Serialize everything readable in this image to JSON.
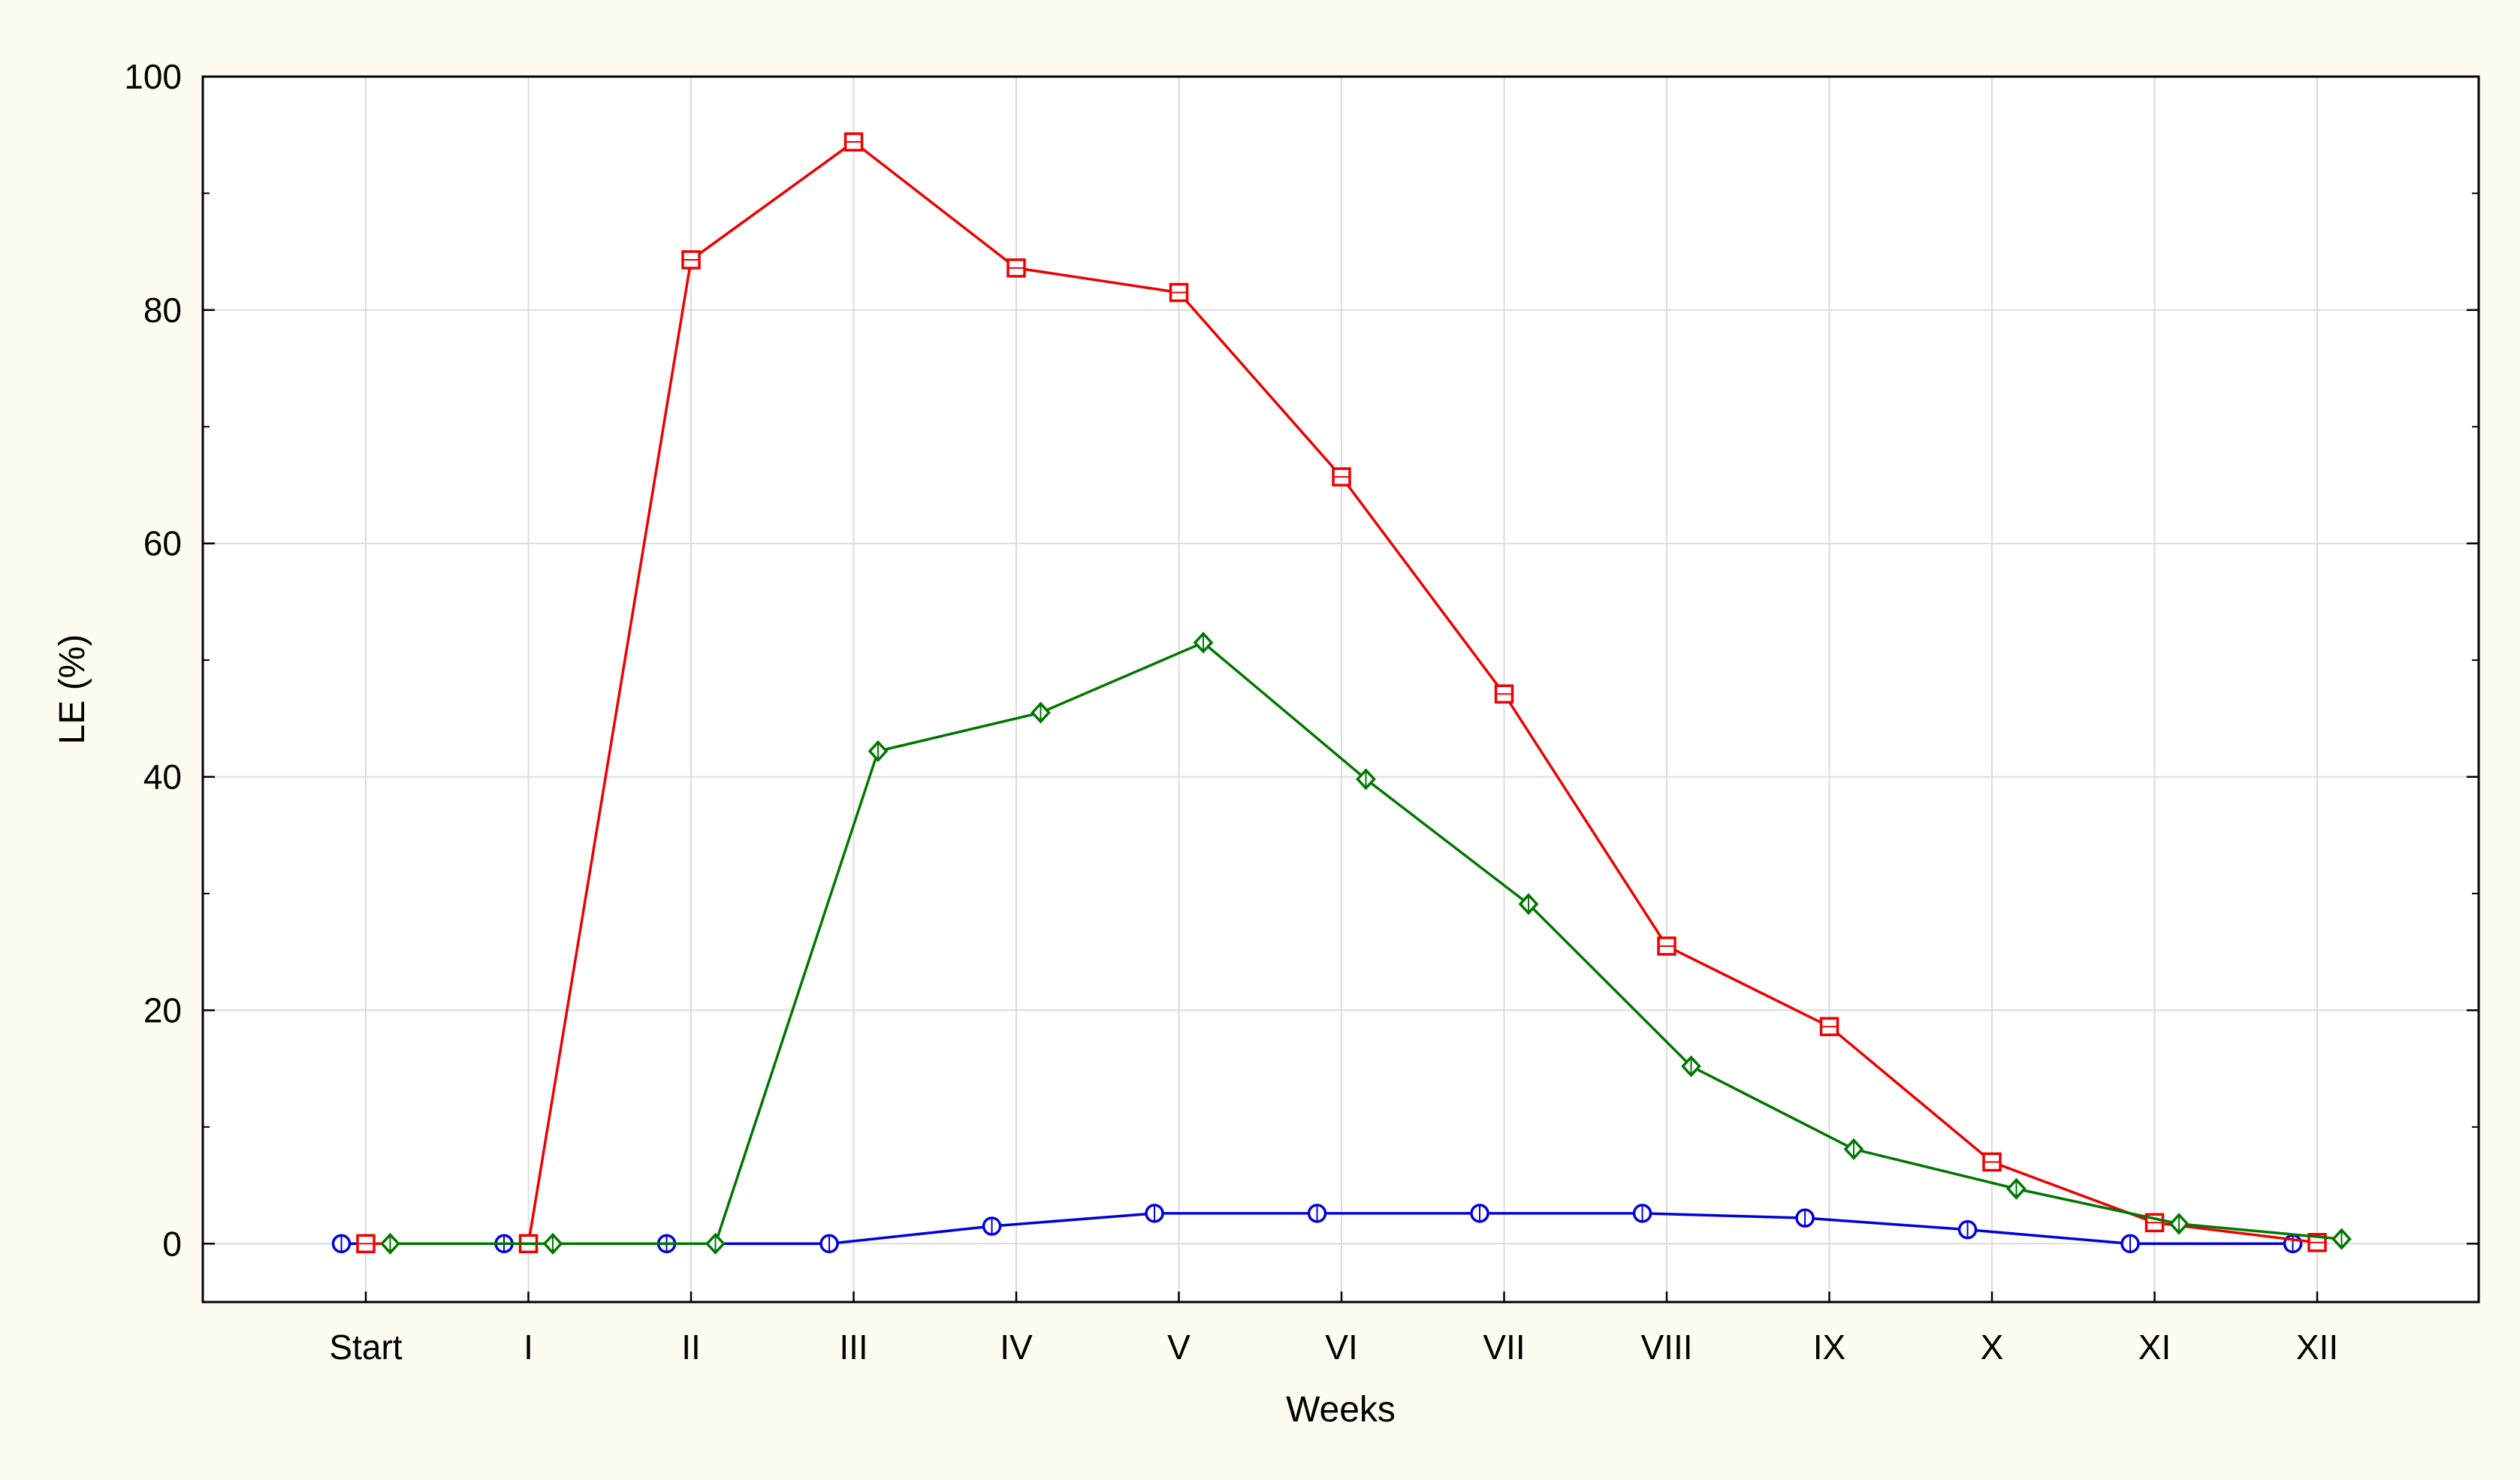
{
  "chart_data": {
    "type": "line",
    "xlabel": "Weeks",
    "ylabel": "LE (%)",
    "categories": [
      "Start",
      "I",
      "II",
      "III",
      "IV",
      "V",
      "VI",
      "VII",
      "VIII",
      "IX",
      "X",
      "XI",
      "XII"
    ],
    "ylim": [
      -5,
      100
    ],
    "yticks": [
      0,
      20,
      40,
      60,
      80,
      100
    ],
    "grid": true,
    "legend": "none",
    "series": [
      {
        "color": "#0000dd",
        "marker": "circle",
        "offset": -0.15,
        "values": [
          0,
          0,
          0,
          0,
          1.5,
          2.6,
          2.6,
          2.6,
          2.6,
          2.2,
          1.2,
          0,
          0
        ]
      },
      {
        "color": "#ee0000",
        "marker": "square",
        "offset": 0,
        "values": [
          0,
          0,
          84.3,
          94.4,
          83.6,
          81.5,
          65.7,
          47.1,
          25.5,
          18.6,
          7.0,
          1.8,
          0.1
        ]
      },
      {
        "color": "#007700",
        "marker": "diamond",
        "offset": 0.15,
        "values": [
          0,
          0,
          0,
          42.2,
          45.5,
          51.5,
          39.8,
          29.1,
          15.2,
          8.1,
          4.7,
          1.7,
          0.4
        ]
      }
    ]
  }
}
